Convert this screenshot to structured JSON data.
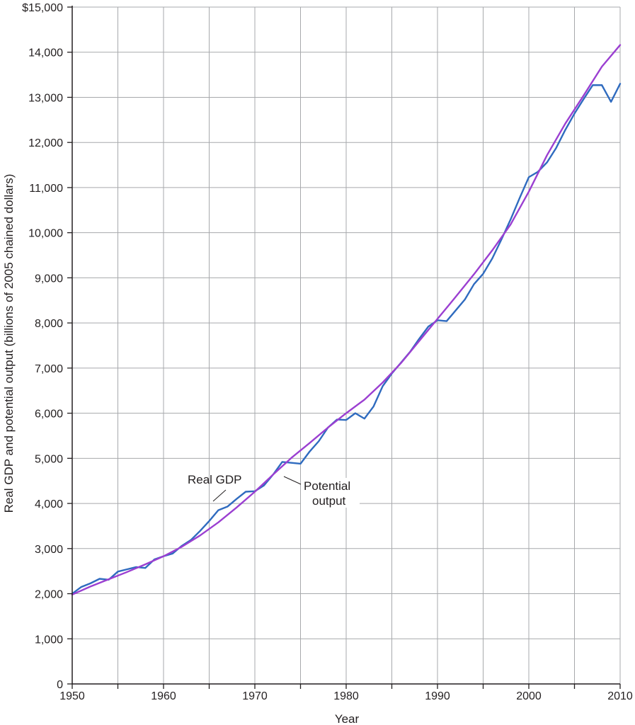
{
  "chart_data": {
    "type": "line",
    "xlabel": "Year",
    "ylabel": "Real GDP and potential output (billions of 2005 chained dollars)",
    "xlim": [
      1950,
      2010
    ],
    "ylim": [
      0,
      15000
    ],
    "x_ticks": [
      {
        "value": 1950,
        "label": "1950"
      },
      {
        "value": 1960,
        "label": "1960"
      },
      {
        "value": 1970,
        "label": "1970"
      },
      {
        "value": 1980,
        "label": "1980"
      },
      {
        "value": 1990,
        "label": "1990"
      },
      {
        "value": 2000,
        "label": "2000"
      },
      {
        "value": 2010,
        "label": "2010"
      }
    ],
    "y_ticks": [
      {
        "value": 0,
        "label": "0"
      },
      {
        "value": 1000,
        "label": "1,000"
      },
      {
        "value": 2000,
        "label": "2,000"
      },
      {
        "value": 3000,
        "label": "3,000"
      },
      {
        "value": 4000,
        "label": "4,000"
      },
      {
        "value": 5000,
        "label": "5,000"
      },
      {
        "value": 6000,
        "label": "6,000"
      },
      {
        "value": 7000,
        "label": "7,000"
      },
      {
        "value": 8000,
        "label": "8,000"
      },
      {
        "value": 9000,
        "label": "9,000"
      },
      {
        "value": 10000,
        "label": "10,000"
      },
      {
        "value": 11000,
        "label": "11,000"
      },
      {
        "value": 12000,
        "label": "12,000"
      },
      {
        "value": 13000,
        "label": "13,000"
      },
      {
        "value": 14000,
        "label": "14,000"
      },
      {
        "value": 15000,
        "label": "$15,000"
      }
    ],
    "grid": true,
    "series": [
      {
        "name": "Real GDP",
        "color": "#2f6bbf",
        "x": [
          1950,
          1951,
          1952,
          1953,
          1954,
          1955,
          1956,
          1957,
          1958,
          1959,
          1960,
          1961,
          1962,
          1963,
          1964,
          1965,
          1966,
          1967,
          1968,
          1969,
          1970,
          1971,
          1972,
          1973,
          1974,
          1975,
          1976,
          1977,
          1978,
          1979,
          1980,
          1981,
          1982,
          1983,
          1984,
          1985,
          1986,
          1987,
          1988,
          1989,
          1990,
          1991,
          1992,
          1993,
          1994,
          1995,
          1996,
          1997,
          1998,
          1999,
          2000,
          2001,
          2002,
          2003,
          2004,
          2005,
          2006,
          2007,
          2008,
          2009,
          2010
        ],
        "values": [
          2000,
          2150,
          2230,
          2330,
          2310,
          2490,
          2540,
          2590,
          2570,
          2760,
          2830,
          2890,
          3060,
          3190,
          3390,
          3610,
          3850,
          3930,
          4100,
          4260,
          4270,
          4400,
          4640,
          4920,
          4900,
          4880,
          5150,
          5380,
          5680,
          5860,
          5850,
          6000,
          5880,
          6150,
          6600,
          6880,
          7120,
          7360,
          7650,
          7920,
          8060,
          8040,
          8280,
          8520,
          8860,
          9090,
          9430,
          9850,
          10290,
          10770,
          11230,
          11350,
          11560,
          11880,
          12280,
          12640,
          12960,
          13270,
          13270,
          12900,
          13300
        ]
      },
      {
        "name": "Potential output",
        "color": "#9b3fd1",
        "x": [
          1950,
          1952,
          1954,
          1956,
          1958,
          1960,
          1962,
          1964,
          1966,
          1968,
          1970,
          1972,
          1974,
          1976,
          1978,
          1980,
          1982,
          1984,
          1986,
          1988,
          1990,
          1992,
          1994,
          1996,
          1998,
          2000,
          2002,
          2004,
          2006,
          2008,
          2010
        ],
        "values": [
          1980,
          2160,
          2320,
          2480,
          2650,
          2830,
          3040,
          3290,
          3580,
          3910,
          4260,
          4640,
          5010,
          5340,
          5680,
          6000,
          6300,
          6680,
          7110,
          7600,
          8090,
          8580,
          9080,
          9610,
          10180,
          10910,
          11720,
          12420,
          13040,
          13680,
          14160
        ]
      }
    ],
    "annotations": {
      "real_gdp": "Real GDP",
      "potential_line1": "Potential",
      "potential_line2": "output"
    }
  }
}
